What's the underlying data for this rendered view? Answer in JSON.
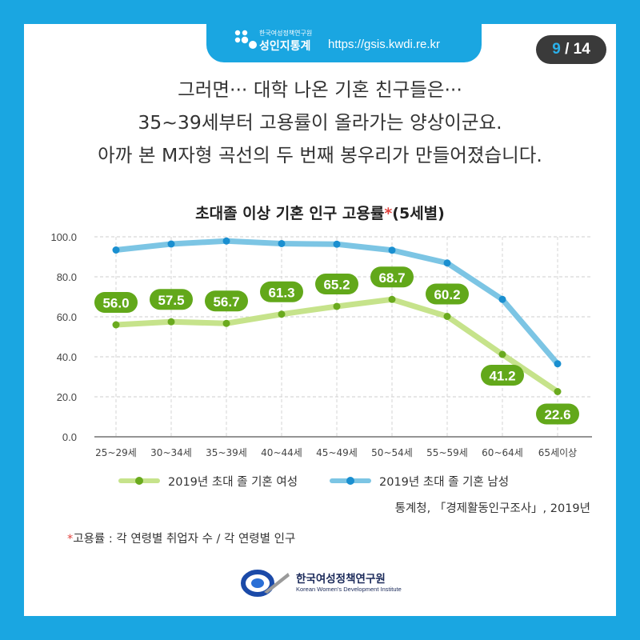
{
  "header": {
    "logo_small": "한국여성정책연구원",
    "logo_big": "성인지통계",
    "url": "https://gsis.kwdi.re.kr"
  },
  "page": {
    "current": "9",
    "separator": " / ",
    "total": "14"
  },
  "headline": [
    "그러면··· 대학 나온 기혼 친구들은···",
    "35~39세부터 고용률이 올라가는 양상이군요.",
    "아까 본 M자형 곡선의 두 번째 봉우리가 만들어졌습니다."
  ],
  "chart_title": {
    "main": "초대졸 이상 기혼 인구 고용률",
    "star": "*",
    "suffix": "(5세별)"
  },
  "chart_data": {
    "type": "line",
    "categories": [
      "25~29세",
      "30~34세",
      "35~39세",
      "40~44세",
      "45~49세",
      "50~54세",
      "55~59세",
      "60~64세",
      "65세이상"
    ],
    "y_ticks": [
      "0.0",
      "20.0",
      "40.0",
      "60.0",
      "80.0",
      "100.0"
    ],
    "ylim": [
      0,
      100
    ],
    "grid": true,
    "legend_position": "bottom",
    "series": [
      {
        "name": "2019년 초대 졸 기혼 여성",
        "values": [
          56.0,
          57.5,
          56.7,
          61.3,
          65.2,
          68.7,
          60.2,
          41.2,
          22.6
        ],
        "labels": [
          "56.0",
          "57.5",
          "56.7",
          "61.3",
          "65.2",
          "68.7",
          "60.2",
          "41.2",
          "22.6"
        ],
        "line_color": "#c6e38b",
        "marker_color": "#6aaa1e",
        "label_bg": "#62a81a"
      },
      {
        "name": "2019년 초대 졸 기혼 남성",
        "values": [
          93.4,
          96.4,
          97.9,
          96.6,
          96.3,
          93.3,
          86.9,
          68.7,
          36.5
        ],
        "line_color": "#7cc5e4",
        "marker_color": "#1a8fd0"
      }
    ]
  },
  "source": "통계청, 「경제활동인구조사」, 2019년",
  "footnote": {
    "star": "*",
    "text": "고용률 : 각 연령별 취업자 수 / 각 연령별 인구"
  },
  "footer_logo": {
    "kr": "한국여성정책연구원",
    "en": "Korean Women's Development Institute"
  }
}
